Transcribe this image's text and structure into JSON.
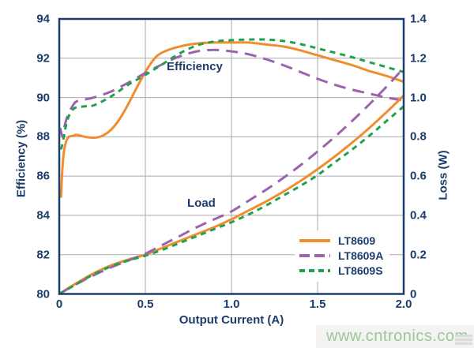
{
  "colors": {
    "text": "#1c3d6b",
    "axis": "#1c3d6b",
    "grid": "#a7a9ac",
    "lt8609": "#ef8e2f",
    "lt8609a": "#9c62ae",
    "lt8609s": "#23a04e",
    "watermark_green": "#9bc79b",
    "watermark_band": "#f3f3f1"
  },
  "watermark": {
    "text": "www.cntronics.com"
  },
  "chart_data": {
    "type": "line",
    "title": "",
    "xlabel": "Output Current (A)",
    "ylabel_left": "Efficiency (%)",
    "ylabel_right": "Loss (W)",
    "x_range": [
      0,
      2
    ],
    "left_range": [
      80,
      94
    ],
    "right_range": [
      0,
      1.4
    ],
    "grid": true,
    "legend_position": "inside lower right",
    "x_tick_values": [
      0,
      0.5,
      1,
      1.5,
      2
    ],
    "x_tick_labels": [
      "0",
      "0.5",
      "1.0",
      "1.5",
      "2.0"
    ],
    "left_tick_values": [
      94,
      92,
      90,
      88,
      86,
      84,
      82,
      80
    ],
    "left_tick_labels": [
      "94",
      "92",
      "90",
      "88",
      "86",
      "84",
      "82",
      "80"
    ],
    "right_tick_values": [
      1.4,
      1.2,
      1.0,
      0.8,
      0.6,
      0.4,
      0.2,
      0
    ],
    "right_tick_labels": [
      "1.4",
      "1.2",
      "1.0",
      "0.8",
      "0.6",
      "0.4",
      "0.2",
      "0"
    ],
    "annotations": [
      {
        "text": "Efficiency",
        "points_to": "upper curve group, efficiency vs current"
      },
      {
        "text": "Load",
        "points_to": "lower curve group, loss vs current"
      }
    ],
    "series": [
      {
        "name": "LT8609",
        "group": "efficiency",
        "axis": "left",
        "color": "#ef8e2f",
        "dash": "solid",
        "x": [
          0.01,
          0.02,
          0.03,
          0.05,
          0.08,
          0.1,
          0.15,
          0.2,
          0.25,
          0.3,
          0.35,
          0.4,
          0.45,
          0.5,
          0.55,
          0.6,
          0.7,
          0.8,
          0.9,
          1.0,
          1.1,
          1.2,
          1.3,
          1.4,
          1.5,
          1.6,
          1.7,
          1.8,
          1.9,
          2.0
        ],
        "y": [
          84.9,
          86.6,
          87.4,
          87.95,
          88.05,
          88.1,
          88.0,
          87.95,
          88.05,
          88.35,
          88.9,
          89.65,
          90.5,
          91.3,
          91.95,
          92.3,
          92.6,
          92.75,
          92.8,
          92.8,
          92.8,
          92.7,
          92.6,
          92.4,
          92.15,
          91.9,
          91.65,
          91.35,
          91.1,
          90.8
        ]
      },
      {
        "name": "LT8609A",
        "group": "efficiency",
        "axis": "left",
        "color": "#9c62ae",
        "dash": "long-dash",
        "x": [
          0.005,
          0.02,
          0.03,
          0.05,
          0.08,
          0.1,
          0.15,
          0.2,
          0.3,
          0.4,
          0.5,
          0.6,
          0.7,
          0.8,
          0.9,
          1.0,
          1.1,
          1.2,
          1.3,
          1.4,
          1.5,
          1.6,
          1.7,
          1.8,
          1.9,
          2.0
        ],
        "y": [
          88.45,
          88.0,
          88.5,
          89.1,
          89.6,
          89.8,
          89.9,
          90.0,
          90.3,
          90.75,
          91.25,
          91.7,
          92.1,
          92.35,
          92.42,
          92.35,
          92.2,
          91.95,
          91.65,
          91.3,
          90.95,
          90.65,
          90.4,
          90.2,
          90.0,
          89.85
        ]
      },
      {
        "name": "LT8609S",
        "group": "efficiency",
        "axis": "left",
        "color": "#23a04e",
        "dash": "short-dash",
        "x": [
          0.01,
          0.02,
          0.04,
          0.06,
          0.08,
          0.1,
          0.15,
          0.2,
          0.3,
          0.4,
          0.5,
          0.6,
          0.7,
          0.8,
          0.9,
          1.0,
          1.1,
          1.2,
          1.3,
          1.4,
          1.5,
          1.6,
          1.7,
          1.8,
          1.9,
          2.0
        ],
        "y": [
          87.35,
          87.7,
          88.6,
          89.15,
          89.4,
          89.5,
          89.55,
          89.6,
          90.05,
          90.65,
          91.15,
          91.7,
          92.25,
          92.65,
          92.85,
          92.92,
          92.95,
          92.95,
          92.88,
          92.72,
          92.5,
          92.28,
          92.05,
          91.8,
          91.55,
          91.3
        ]
      },
      {
        "name": "LT8609",
        "group": "loss",
        "axis": "right",
        "color": "#ef8e2f",
        "dash": "solid",
        "x": [
          0,
          0.1,
          0.2,
          0.3,
          0.4,
          0.5,
          0.6,
          0.7,
          0.8,
          0.9,
          1.0,
          1.1,
          1.2,
          1.3,
          1.4,
          1.5,
          1.6,
          1.7,
          1.8,
          1.9,
          2.0
        ],
        "y": [
          0,
          0.055,
          0.105,
          0.145,
          0.175,
          0.2,
          0.235,
          0.27,
          0.305,
          0.34,
          0.38,
          0.425,
          0.47,
          0.52,
          0.575,
          0.635,
          0.7,
          0.77,
          0.845,
          0.925,
          1.01
        ]
      },
      {
        "name": "LT8609A",
        "group": "loss",
        "axis": "right",
        "color": "#9c62ae",
        "dash": "long-dash",
        "x": [
          0,
          0.1,
          0.2,
          0.3,
          0.4,
          0.5,
          0.6,
          0.7,
          0.8,
          0.9,
          1.0,
          1.1,
          1.2,
          1.3,
          1.4,
          1.5,
          1.6,
          1.7,
          1.8,
          1.9,
          2.0
        ],
        "y": [
          0,
          0.05,
          0.095,
          0.135,
          0.17,
          0.205,
          0.25,
          0.295,
          0.34,
          0.38,
          0.42,
          0.475,
          0.53,
          0.59,
          0.655,
          0.725,
          0.8,
          0.88,
          0.965,
          1.055,
          1.15
        ]
      },
      {
        "name": "LT8609S",
        "group": "loss",
        "axis": "right",
        "color": "#23a04e",
        "dash": "short-dash",
        "x": [
          0,
          0.1,
          0.2,
          0.3,
          0.4,
          0.5,
          0.6,
          0.7,
          0.8,
          0.9,
          1.0,
          1.1,
          1.2,
          1.3,
          1.4,
          1.5,
          1.6,
          1.7,
          1.8,
          1.9,
          2.0
        ],
        "y": [
          0,
          0.05,
          0.1,
          0.14,
          0.17,
          0.195,
          0.225,
          0.26,
          0.295,
          0.33,
          0.365,
          0.405,
          0.45,
          0.5,
          0.55,
          0.605,
          0.67,
          0.735,
          0.805,
          0.88,
          0.955
        ]
      }
    ]
  }
}
